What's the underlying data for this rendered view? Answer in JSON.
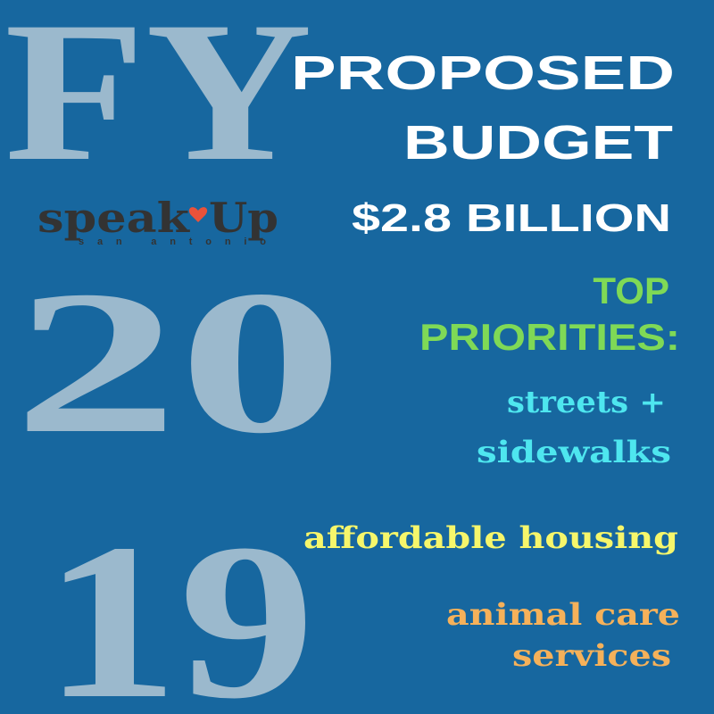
{
  "big": {
    "fy": "FY",
    "twenty": "20",
    "nineteen": "19"
  },
  "logo": {
    "speak": "speak",
    "up": "Up",
    "city": "san antonio"
  },
  "heading": {
    "line1": "PROPOSED",
    "line2": "BUDGET",
    "amount": "$2.8 BILLION"
  },
  "priorities": {
    "title1": "TOP",
    "title2": "PRIORITIES:",
    "items": [
      [
        "streets +",
        "sidewalks"
      ],
      [
        "affordable housing"
      ],
      [
        "animal care",
        "services"
      ]
    ]
  }
}
